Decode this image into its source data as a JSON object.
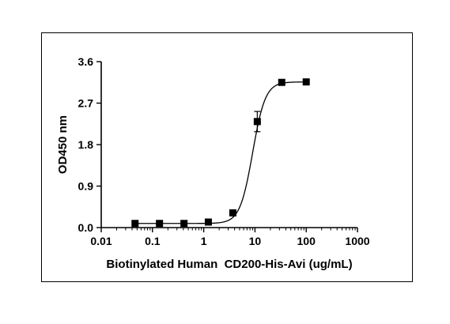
{
  "chart_data": {
    "type": "scatter",
    "title": "",
    "xlabel": "Biotinylated Human  CD200-His-Avi (ug/mL)",
    "ylabel": "OD450 nm",
    "x_scale": "log",
    "xlim": [
      0.01,
      1000
    ],
    "ylim": [
      0.0,
      3.6
    ],
    "x_ticks": [
      "0.01",
      "0.1",
      "1",
      "10",
      "100",
      "1000"
    ],
    "y_ticks": [
      "0.0",
      "0.9",
      "1.8",
      "2.7",
      "3.6"
    ],
    "grid": false,
    "legend": "none",
    "series": [
      {
        "marker": "square",
        "color": "#000000",
        "x": [
          0.0457,
          0.137,
          0.412,
          1.23,
          3.7,
          11.1,
          33.3,
          100
        ],
        "y": [
          0.09,
          0.09,
          0.09,
          0.12,
          0.32,
          2.3,
          3.15,
          3.16
        ],
        "error": [
          0.0,
          0.0,
          0.0,
          0.0,
          0.0,
          0.22,
          0.0,
          0.0
        ]
      }
    ],
    "fit": {
      "type": "4PL",
      "bottom": 0.09,
      "top": 3.16,
      "ec50": 9.0,
      "hill": 3.5
    }
  }
}
